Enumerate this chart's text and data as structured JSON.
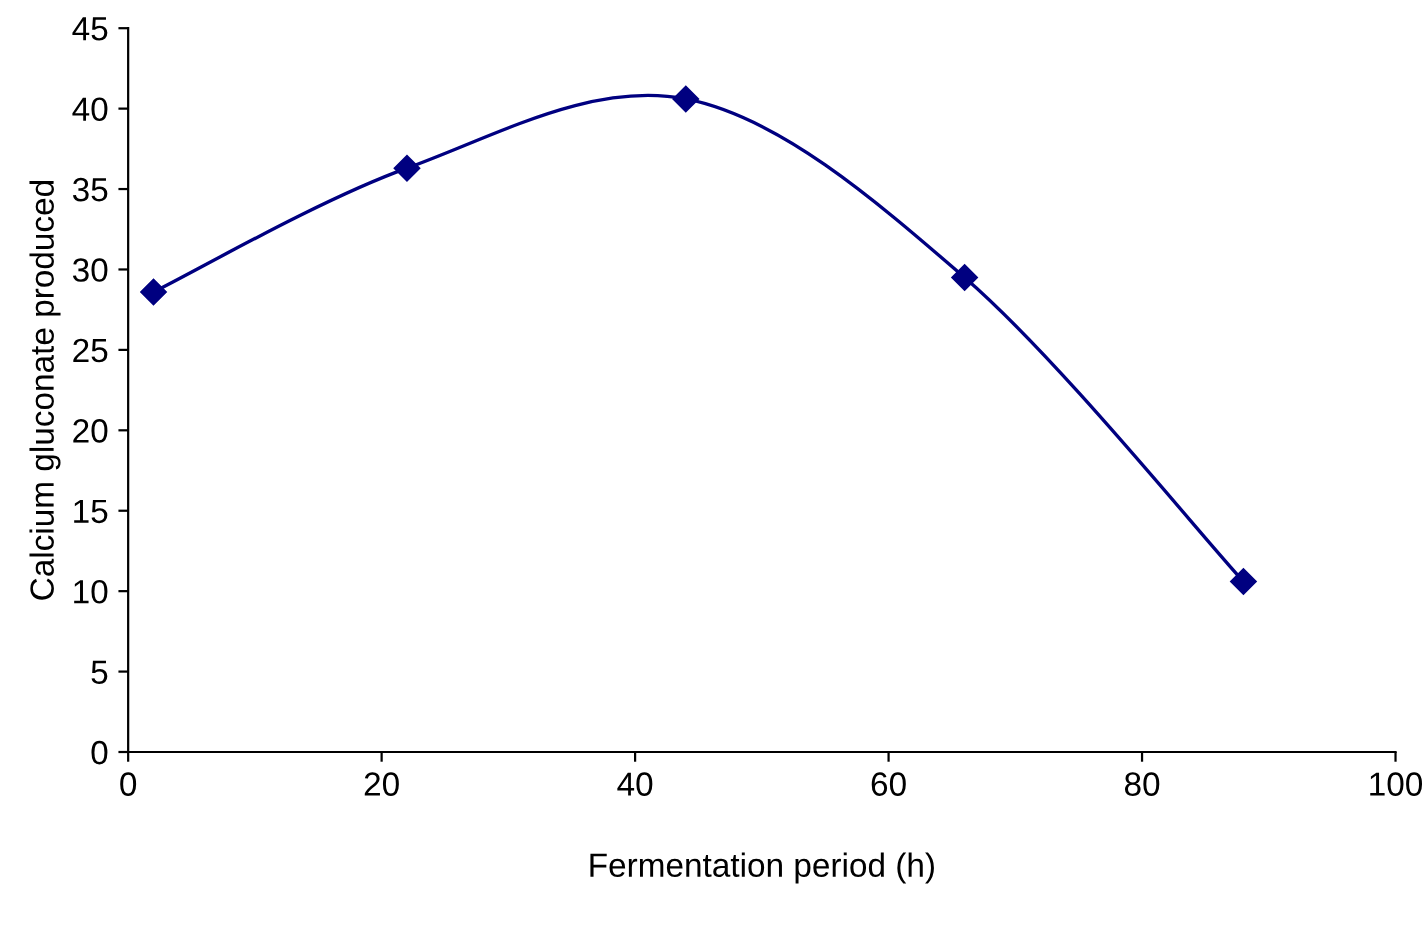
{
  "chart_data": {
    "type": "line",
    "xlabel": "Fermentation period (h)",
    "ylabel": "Calcium gluconate produced",
    "series": [
      {
        "color": "#000080",
        "x": [
          2,
          22,
          44,
          66,
          88
        ],
        "values": [
          28.6,
          36.3,
          40.6,
          29.5,
          10.6
        ]
      }
    ],
    "xlim": [
      0,
      100
    ],
    "xticks": [
      0,
      20,
      40,
      60,
      80,
      100
    ],
    "ylim": [
      0,
      45
    ],
    "yticks": [
      0,
      5,
      10,
      15,
      20,
      25,
      30,
      35,
      40,
      45
    ],
    "grid": false,
    "legend": false,
    "marker": "diamond",
    "line_style": "solid"
  }
}
